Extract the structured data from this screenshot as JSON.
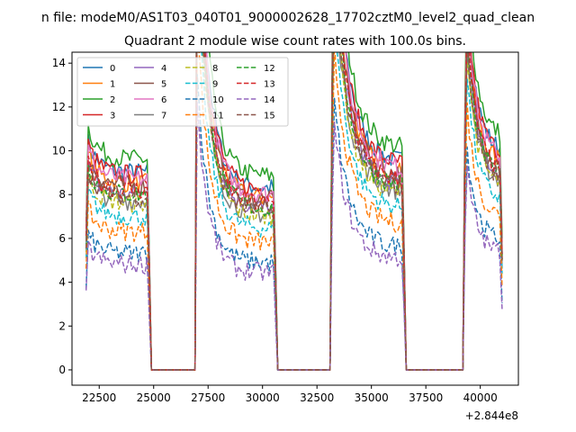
{
  "figure": {
    "suptitle": "n file: modeM0/AS1T03_040T01_9000002628_17702cztM0_level2_quad_clean",
    "title": "Quadrant 2 module wise count rates with 100.0s bins.",
    "offset_text": "+2.844e8"
  },
  "chart_data": {
    "type": "line",
    "title": "Quadrant 2 module wise count rates with 100.0s bins.",
    "xlabel": "",
    "ylabel": "",
    "xlim": [
      21250,
      41750
    ],
    "ylim": [
      -0.7,
      14.5
    ],
    "x_offset": 284400000,
    "xticks": [
      22500,
      25000,
      27500,
      30000,
      32500,
      35000,
      37500,
      40000
    ],
    "xtick_labels": [
      "22500",
      "25000",
      "27500",
      "30000",
      "32500",
      "35000",
      "37500",
      "40000"
    ],
    "yticks": [
      0,
      2,
      4,
      6,
      8,
      10,
      12,
      14
    ],
    "ytick_labels": [
      "0",
      "2",
      "4",
      "6",
      "8",
      "10",
      "12",
      "14"
    ],
    "grid": false,
    "legend": {
      "placement": "top-left",
      "ncol": 4
    },
    "segments": [
      {
        "start": 21900,
        "end": 24800,
        "decay": 0.6
      },
      {
        "start": 26950,
        "end": 30650,
        "decay": 3.5
      },
      {
        "start": 33200,
        "end": 36500,
        "decay": 2.8
      },
      {
        "start": 39300,
        "end": 41050,
        "decay": 1.8
      }
    ],
    "series": [
      {
        "name": "0",
        "color": "#1f77b4",
        "dash": "solid",
        "base": 9.0
      },
      {
        "name": "1",
        "color": "#ff7f0e",
        "dash": "solid",
        "base": 8.5
      },
      {
        "name": "2",
        "color": "#2ca02c",
        "dash": "solid",
        "base": 9.6
      },
      {
        "name": "3",
        "color": "#d62728",
        "dash": "solid",
        "base": 8.9
      },
      {
        "name": "4",
        "color": "#9467bd",
        "dash": "solid",
        "base": 8.0
      },
      {
        "name": "5",
        "color": "#8c564b",
        "dash": "solid",
        "base": 8.4
      },
      {
        "name": "6",
        "color": "#e377c2",
        "dash": "solid",
        "base": 8.7
      },
      {
        "name": "7",
        "color": "#7f7f7f",
        "dash": "solid",
        "base": 7.7
      },
      {
        "name": "8",
        "color": "#bcbd22",
        "dash": "dashed",
        "base": 7.6
      },
      {
        "name": "9",
        "color": "#17becf",
        "dash": "dashed",
        "base": 7.0
      },
      {
        "name": "10",
        "color": "#1f77b4",
        "dash": "dashed",
        "base": 5.3
      },
      {
        "name": "11",
        "color": "#ff7f0e",
        "dash": "dashed",
        "base": 6.3
      },
      {
        "name": "12",
        "color": "#2ca02c",
        "dash": "dashed",
        "base": 8.0
      },
      {
        "name": "13",
        "color": "#d62728",
        "dash": "dashed",
        "base": 8.2
      },
      {
        "name": "14",
        "color": "#9467bd",
        "dash": "dashed",
        "base": 4.8
      },
      {
        "name": "15",
        "color": "#8c564b",
        "dash": "dashed",
        "base": 7.9
      }
    ]
  }
}
